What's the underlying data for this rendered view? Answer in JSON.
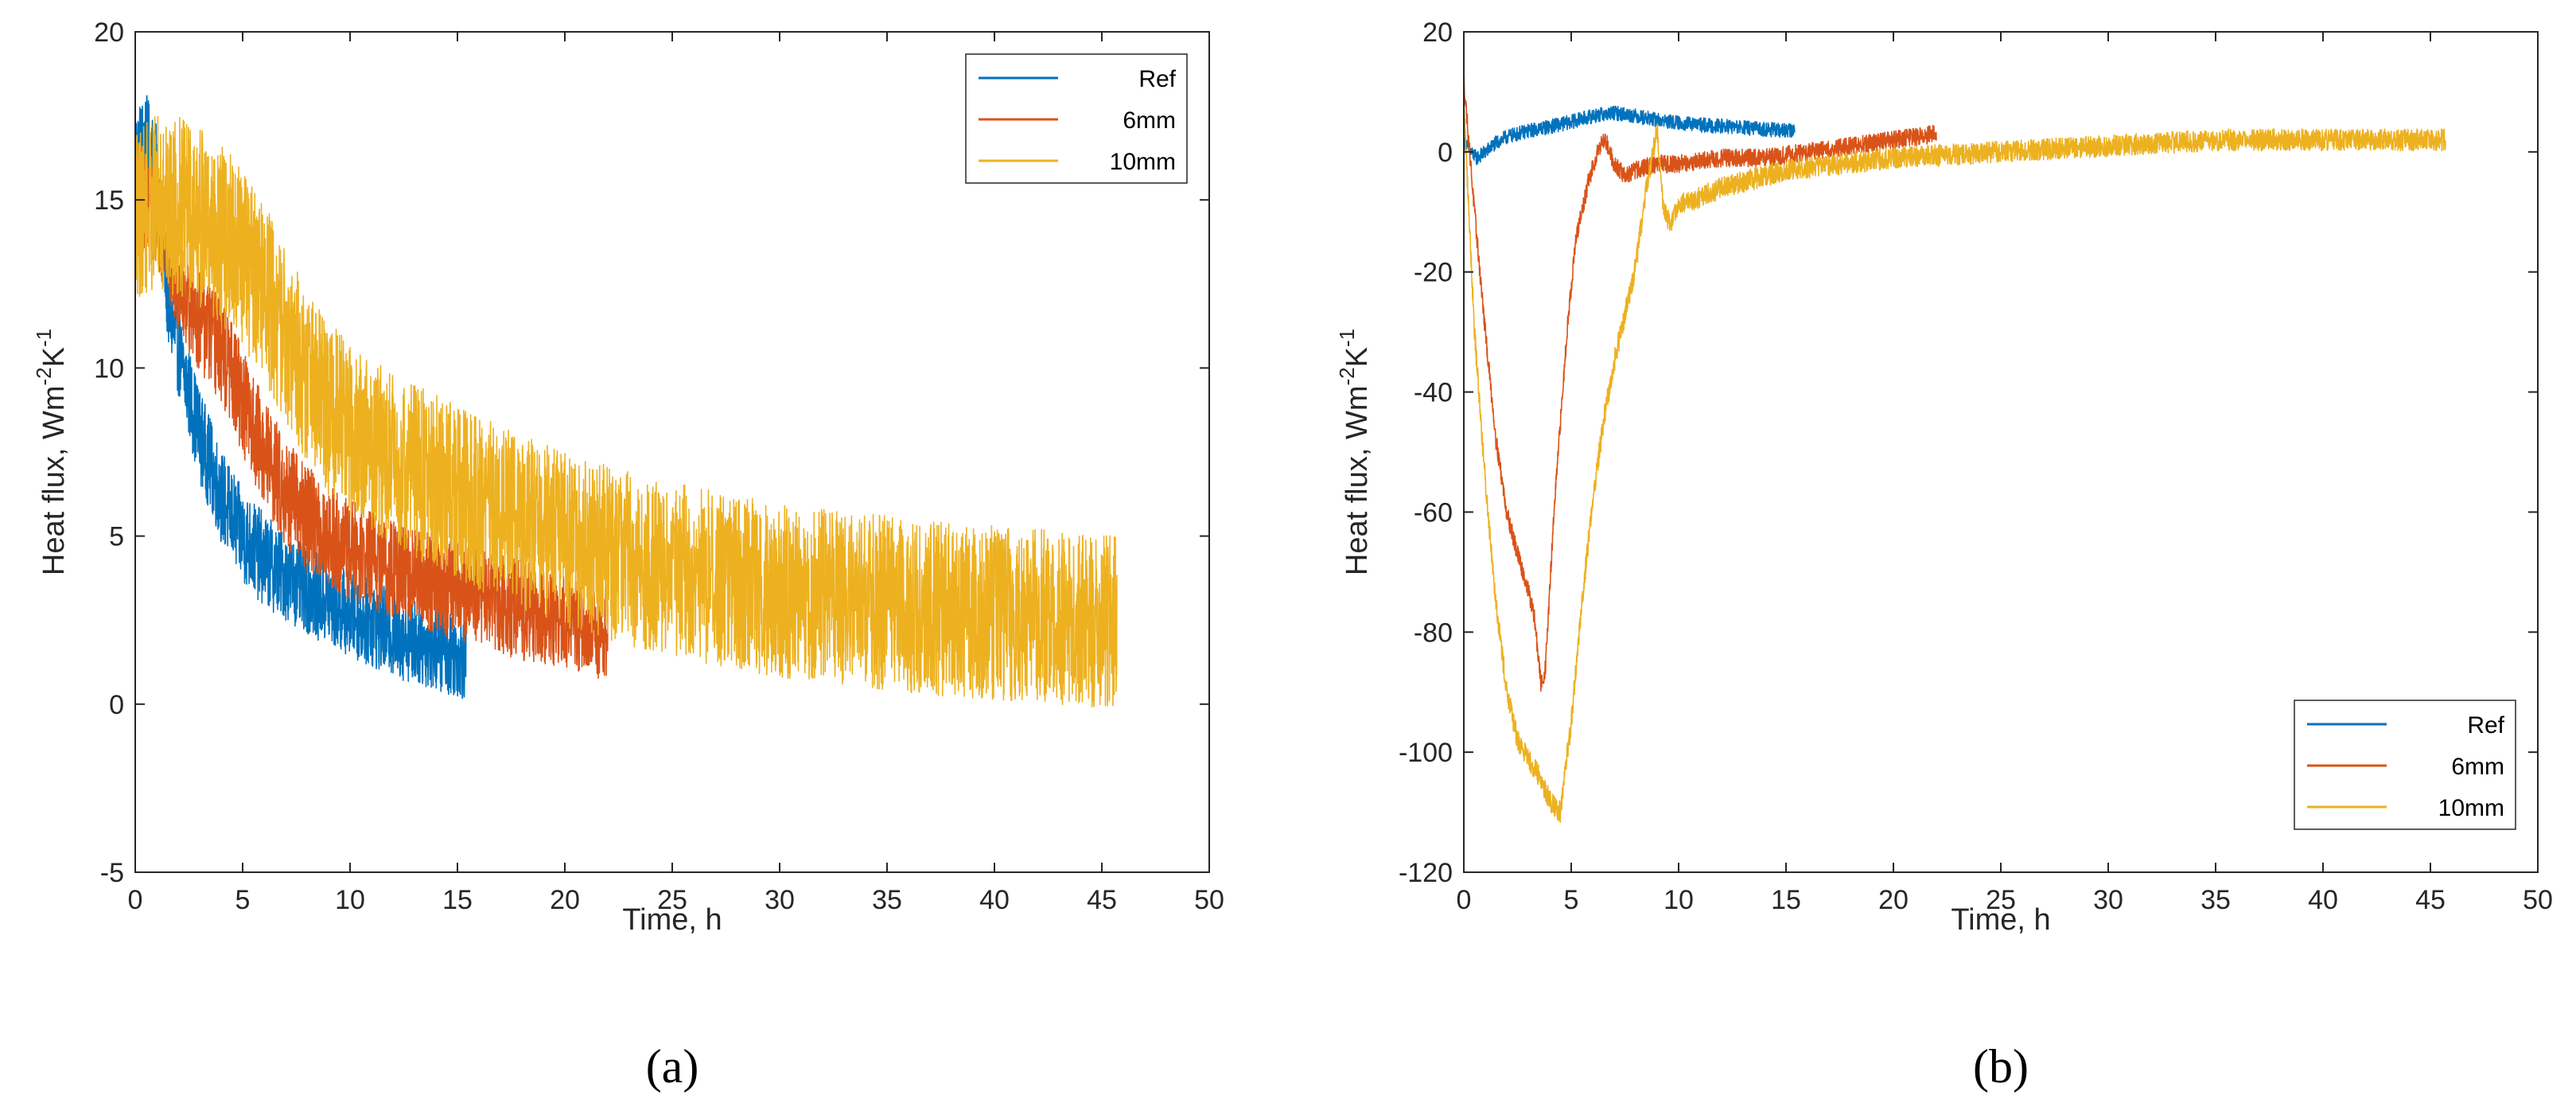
{
  "colors": {
    "ref": "#0072BD",
    "mm6": "#D95319",
    "mm10": "#EDB120",
    "axis": "#262626"
  },
  "chart_data": [
    {
      "type": "line",
      "panel_label": "(a)",
      "xlabel": "Time, h",
      "ylabel_parts": [
        "Heat flux, Wm",
        "-2",
        "K",
        "-1"
      ],
      "xlim": [
        0,
        50
      ],
      "ylim": [
        -5,
        20
      ],
      "xticks": [
        0,
        5,
        10,
        15,
        20,
        25,
        30,
        35,
        40,
        45,
        50
      ],
      "yticks": [
        -5,
        0,
        5,
        10,
        15,
        20
      ],
      "xtick_labels": [
        "0",
        "5",
        "10",
        "15",
        "20",
        "25",
        "30",
        "35",
        "40",
        "45",
        "50"
      ],
      "ytick_labels": [
        "-5",
        "0",
        "5",
        "10",
        "15",
        "20"
      ],
      "legend_location": "top-right",
      "series": [
        {
          "name": "Ref",
          "color_key": "ref",
          "x": [
            0,
            0.5,
            1,
            1.5,
            2,
            3,
            4,
            5,
            6,
            7,
            8,
            9,
            10,
            11,
            12,
            13,
            14,
            15,
            15.4
          ],
          "y": [
            16.5,
            17,
            16,
            12,
            10.5,
            8,
            6.2,
            5,
            4.3,
            3.8,
            3.4,
            3,
            2.7,
            2.4,
            2.1,
            1.9,
            1.7,
            1.5,
            1.4
          ],
          "noise": [
            1.2,
            1.2,
            1.2,
            1.2,
            1.3,
            1.4,
            1.4,
            1.4,
            1.4,
            1.3,
            1.3,
            1.3,
            1.3,
            1.3,
            1.3,
            1.3,
            1.3,
            1.3,
            1.3
          ]
        },
        {
          "name": "6mm",
          "color_key": "mm6",
          "x": [
            0,
            1,
            2,
            3,
            4,
            5,
            6,
            7,
            8,
            9,
            10,
            12,
            14,
            16,
            18,
            20,
            22
          ],
          "y": [
            15.5,
            14.5,
            12.5,
            11.5,
            10.5,
            9,
            7.5,
            6.3,
            5.5,
            5,
            4.6,
            4,
            3.6,
            3.2,
            2.8,
            2.4,
            2.1
          ],
          "noise": [
            1.5,
            1.5,
            1.5,
            1.6,
            1.6,
            1.6,
            1.6,
            1.6,
            1.6,
            1.5,
            1.5,
            1.5,
            1.5,
            1.5,
            1.5,
            1.4,
            1.4
          ]
        },
        {
          "name": "10mm",
          "color_key": "mm10",
          "x": [
            0,
            1,
            2,
            3,
            4,
            5,
            6,
            7,
            8,
            9,
            10,
            12,
            14,
            16,
            18,
            20,
            22,
            25,
            28,
            30,
            35,
            40,
            45,
            45.7
          ],
          "y": [
            14.5,
            15,
            14.8,
            14.5,
            14,
            13.3,
            12.3,
            11,
            9.7,
            8.8,
            8.1,
            7.3,
            6.6,
            6,
            5.4,
            4.9,
            4.5,
            4,
            3.6,
            3.4,
            3,
            2.7,
            2.5,
            2.5
          ],
          "noise": [
            2.5,
            2.6,
            2.7,
            2.7,
            2.7,
            2.7,
            2.7,
            2.6,
            2.6,
            2.6,
            2.6,
            2.6,
            2.6,
            2.6,
            2.6,
            2.6,
            2.6,
            2.6,
            2.6,
            2.6,
            2.6,
            2.6,
            2.6,
            2.6
          ]
        }
      ]
    },
    {
      "type": "line",
      "panel_label": "(b)",
      "xlabel": "Time, h",
      "ylabel_parts": [
        "Heat flux,  Wm",
        "-2",
        "K",
        "-1"
      ],
      "xlim": [
        0,
        50
      ],
      "ylim": [
        -120,
        20
      ],
      "xticks": [
        0,
        5,
        10,
        15,
        20,
        25,
        30,
        35,
        40,
        45,
        50
      ],
      "yticks": [
        -120,
        -100,
        -80,
        -60,
        -40,
        -20,
        0,
        20
      ],
      "xtick_labels": [
        "0",
        "5",
        "10",
        "15",
        "20",
        "25",
        "30",
        "35",
        "40",
        "45",
        "50"
      ],
      "ytick_labels": [
        "-120",
        "-100",
        "-80",
        "-60",
        "-40",
        "-20",
        "0",
        "20"
      ],
      "legend_location": "bottom-right",
      "series": [
        {
          "name": "Ref",
          "color_key": "ref",
          "x": [
            0,
            0.3,
            0.6,
            1,
            1.5,
            2,
            3,
            4,
            5,
            6,
            7,
            8,
            9,
            10,
            11,
            12,
            13,
            14,
            15,
            15.4
          ],
          "y": [
            2,
            0,
            -1,
            0,
            1.5,
            2.5,
            3.5,
            4.2,
            5,
            6,
            6.5,
            6,
            5.3,
            4.8,
            4.5,
            4.3,
            4,
            3.8,
            3.5,
            3.5
          ],
          "noise": [
            1.2,
            1.2,
            1.2,
            1.2,
            1.2,
            1.2,
            1.2,
            1.2,
            1.2,
            1.2,
            1.2,
            1.2,
            1.2,
            1.2,
            1.2,
            1.2,
            1.2,
            1.2,
            1.2,
            1.2
          ]
        },
        {
          "name": "6mm",
          "color_key": "mm6",
          "x": [
            0,
            0.5,
            1,
            1.5,
            2,
            2.5,
            3,
            3.3,
            3.6,
            3.8,
            4.2,
            4.8,
            5.2,
            5.8,
            6.3,
            6.6,
            7,
            7.5,
            8,
            9,
            10,
            12,
            14,
            16,
            18,
            20,
            22
          ],
          "y": [
            12,
            -10,
            -30,
            -48,
            -60,
            -67,
            -73,
            -78,
            -89,
            -86,
            -60,
            -30,
            -15,
            -5,
            1,
            2,
            -2,
            -4,
            -3,
            -2,
            -2,
            -1,
            -1,
            0,
            1,
            2,
            3
          ],
          "noise": [
            1.5,
            1.5,
            1.5,
            1.5,
            1.5,
            1.5,
            1.5,
            1.5,
            1.5,
            1.5,
            1.5,
            1.5,
            1.5,
            1.5,
            1.5,
            1.5,
            1.5,
            1.5,
            1.5,
            1.5,
            1.5,
            1.5,
            1.5,
            1.5,
            1.5,
            1.5,
            1.5
          ]
        },
        {
          "name": "10mm",
          "color_key": "mm10",
          "x": [
            0,
            0.5,
            1,
            1.5,
            2,
            2.5,
            3,
            3.5,
            4,
            4.5,
            5,
            5.5,
            6,
            6.5,
            7,
            7.5,
            8,
            8.5,
            9,
            9.3,
            9.6,
            10,
            12,
            15,
            20,
            25,
            30,
            35,
            40,
            45,
            45.7
          ],
          "y": [
            8,
            -30,
            -55,
            -75,
            -90,
            -98,
            -101,
            -104,
            -108,
            -110,
            -95,
            -75,
            -58,
            -45,
            -35,
            -27,
            -19,
            -6,
            4,
            -10,
            -12,
            -9,
            -6,
            -3,
            -1,
            0,
            1,
            2,
            2,
            2,
            2
          ],
          "noise": [
            1.8,
            1.8,
            1.8,
            1.8,
            1.8,
            1.8,
            1.8,
            1.8,
            1.8,
            1.8,
            1.8,
            1.8,
            1.8,
            1.8,
            1.8,
            1.8,
            1.8,
            1.8,
            1.8,
            1.8,
            1.8,
            1.8,
            1.8,
            1.8,
            1.8,
            1.8,
            1.8,
            1.8,
            1.8,
            1.8,
            1.8
          ]
        }
      ]
    }
  ]
}
